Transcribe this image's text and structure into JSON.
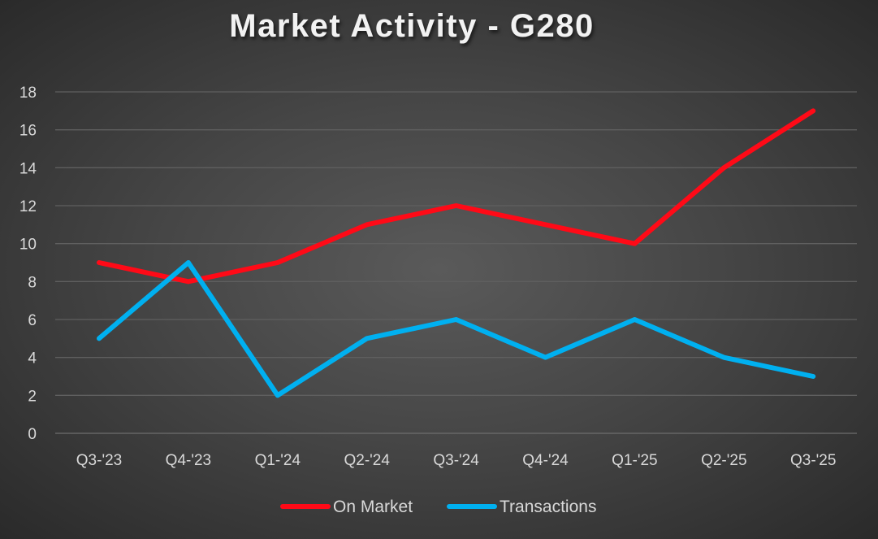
{
  "chart_data": {
    "type": "line",
    "title": "Market Activity - G280",
    "xlabel": "",
    "ylabel": "",
    "categories": [
      "Q3-'23",
      "Q4-'23",
      "Q1-'24",
      "Q2-'24",
      "Q3-'24",
      "Q4-'24",
      "Q1-'25",
      "Q2-'25",
      "Q3-'25"
    ],
    "ylim": [
      0,
      18
    ],
    "yticks": [
      0,
      2,
      4,
      6,
      8,
      10,
      12,
      14,
      16,
      18
    ],
    "grid": true,
    "legend_position": "bottom",
    "series": [
      {
        "name": "On Market",
        "color": "#ff0a17",
        "values": [
          9,
          8,
          9,
          11,
          12,
          11,
          10,
          14,
          17
        ]
      },
      {
        "name": "Transactions",
        "color": "#00b0f0",
        "values": [
          5,
          9,
          2,
          5,
          6,
          4,
          6,
          4,
          3
        ]
      }
    ]
  }
}
